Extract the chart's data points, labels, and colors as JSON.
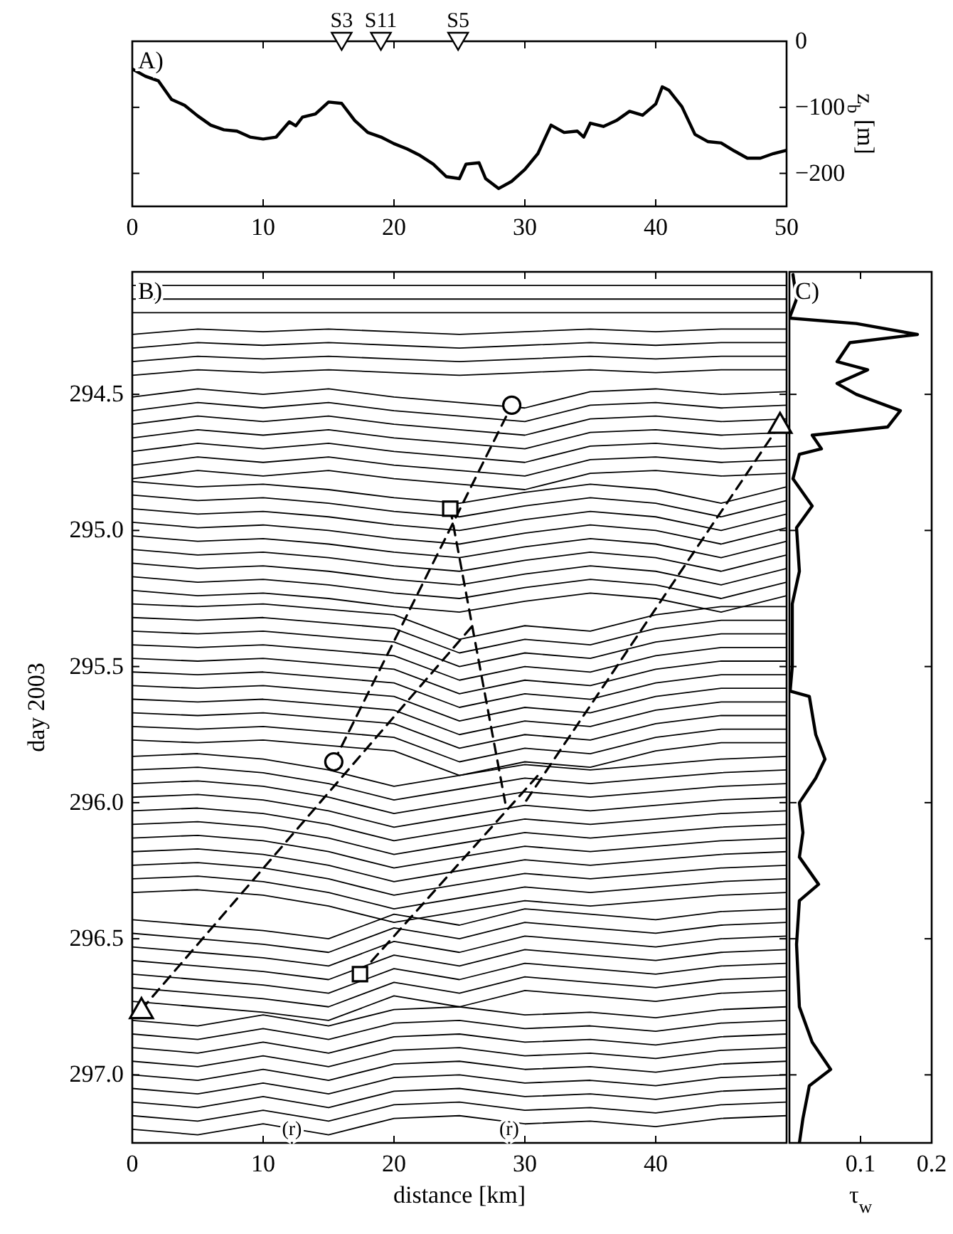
{
  "chart_data": [
    {
      "type": "line",
      "title": "A)",
      "xlim": [
        0,
        50
      ],
      "xticks": [
        0,
        10,
        20,
        30,
        40,
        50
      ],
      "y2lim": [
        -250,
        0
      ],
      "y2ticks": [
        0,
        {
          "value": -100,
          "label": "−100"
        },
        {
          "value": -200,
          "label": "−200"
        }
      ],
      "y2label": "z$_{b}$ [m]",
      "series": [
        {
          "axis": "y2",
          "color": "#000000",
          "x": [
            0,
            1,
            2,
            3,
            4,
            5,
            6,
            7,
            8,
            9,
            10,
            11,
            12,
            12.5,
            13,
            14,
            15,
            16,
            17,
            18,
            19,
            20,
            21,
            22,
            23,
            24,
            25,
            25.5,
            26.5,
            27,
            28,
            29,
            30,
            31,
            32,
            33,
            34,
            34.5,
            35,
            36,
            37,
            38,
            39,
            40,
            40.5,
            41,
            42,
            43,
            44,
            45,
            46,
            47,
            48,
            49,
            50
          ],
          "values": [
            -42,
            -53,
            -60,
            -88,
            -97,
            -113,
            -127,
            -134,
            -136,
            -145,
            -148,
            -145,
            -122,
            -128,
            -115,
            -110,
            -92,
            -94,
            -120,
            -138,
            -145,
            -155,
            -163,
            -173,
            -186,
            -205,
            -208,
            -186,
            -184,
            -208,
            -223,
            -212,
            -194,
            -170,
            -127,
            -138,
            -136,
            -145,
            -124,
            -129,
            -120,
            -106,
            -112,
            -95,
            -69,
            -74,
            -99,
            -141,
            -152,
            -154,
            -166,
            -177,
            -177,
            -170,
            -165
          ]
        },
        {
          "type": "scatter",
          "axis": "y2",
          "marker": "triangle",
          "color": "#000000",
          "x": [
            16,
            19,
            24.9
          ],
          "values": [
            0,
            0,
            0
          ],
          "value_labels": [
            "S3",
            "S11",
            "S5"
          ]
        }
      ]
    },
    {
      "type": "line",
      "title": "B)",
      "xlabel": "distance [km]",
      "ylabel": "day 2003",
      "xlim": [
        0,
        50
      ],
      "xticks": [
        0,
        10,
        20,
        30,
        40
      ],
      "ylim": [
        297.25,
        294.05
      ],
      "yticks": [
        {
          "value": 294.5,
          "label": "294.5"
        },
        {
          "value": 295,
          "label": "295.0"
        },
        {
          "value": 295.5,
          "label": "295.5"
        },
        {
          "value": 296,
          "label": "296.0"
        },
        {
          "value": 296.5,
          "label": "296.5"
        },
        {
          "value": 297,
          "label": "297.0"
        }
      ],
      "x": [
        0,
        5,
        10,
        15,
        20,
        25,
        30,
        35,
        40,
        45,
        50
      ],
      "annotations": [
        {
          "text": "(r)",
          "x": 12.2,
          "y": 297.17
        },
        {
          "text": "(r)",
          "x": 28.8,
          "y": 297.17
        }
      ],
      "series": [
        {
          "color": "#000000",
          "values": [
            294.1,
            294.1,
            294.1,
            294.1,
            294.1,
            294.1,
            294.1,
            294.1,
            294.1,
            294.1,
            294.1
          ]
        },
        {
          "color": "#000000",
          "values": [
            294.15,
            294.15,
            294.15,
            294.15,
            294.15,
            294.15,
            294.15,
            294.15,
            294.15,
            294.15,
            294.15
          ]
        },
        {
          "color": "#000000",
          "values": [
            294.2,
            294.2,
            294.2,
            294.2,
            294.2,
            294.2,
            294.2,
            294.2,
            294.2,
            294.2,
            294.2
          ]
        },
        {
          "color": "#000000",
          "values": [
            294.28,
            294.26,
            294.27,
            294.26,
            294.27,
            294.28,
            294.27,
            294.26,
            294.27,
            294.26,
            294.26
          ]
        },
        {
          "color": "#000000",
          "values": [
            294.33,
            294.31,
            294.32,
            294.31,
            294.32,
            294.33,
            294.32,
            294.31,
            294.32,
            294.31,
            294.31
          ]
        },
        {
          "color": "#000000",
          "values": [
            294.38,
            294.36,
            294.37,
            294.36,
            294.37,
            294.38,
            294.37,
            294.36,
            294.37,
            294.36,
            294.36
          ]
        },
        {
          "color": "#000000",
          "values": [
            294.43,
            294.41,
            294.42,
            294.41,
            294.42,
            294.43,
            294.42,
            294.41,
            294.42,
            294.41,
            294.41
          ]
        },
        {
          "color": "#000000",
          "values": [
            294.51,
            294.48,
            294.5,
            294.48,
            294.51,
            294.53,
            294.55,
            294.49,
            294.48,
            294.5,
            294.49
          ]
        },
        {
          "color": "#000000",
          "values": [
            294.56,
            294.53,
            294.55,
            294.53,
            294.56,
            294.58,
            294.6,
            294.54,
            294.53,
            294.55,
            294.54
          ]
        },
        {
          "color": "#000000",
          "values": [
            294.61,
            294.58,
            294.6,
            294.58,
            294.61,
            294.63,
            294.65,
            294.59,
            294.58,
            294.6,
            294.59
          ]
        },
        {
          "color": "#000000",
          "values": [
            294.66,
            294.63,
            294.65,
            294.63,
            294.66,
            294.68,
            294.7,
            294.64,
            294.63,
            294.65,
            294.64
          ]
        },
        {
          "color": "#000000",
          "values": [
            294.71,
            294.68,
            294.7,
            294.68,
            294.71,
            294.73,
            294.75,
            294.69,
            294.68,
            294.7,
            294.69
          ]
        },
        {
          "color": "#000000",
          "values": [
            294.76,
            294.73,
            294.75,
            294.73,
            294.76,
            294.78,
            294.8,
            294.74,
            294.73,
            294.75,
            294.74
          ]
        },
        {
          "color": "#000000",
          "values": [
            294.81,
            294.78,
            294.8,
            294.78,
            294.81,
            294.83,
            294.85,
            294.79,
            294.78,
            294.8,
            294.79
          ]
        },
        {
          "color": "#000000",
          "values": [
            294.82,
            294.84,
            294.83,
            294.85,
            294.88,
            294.9,
            294.86,
            294.83,
            294.85,
            294.9,
            294.84
          ]
        },
        {
          "color": "#000000",
          "values": [
            294.87,
            294.89,
            294.88,
            294.9,
            294.93,
            294.95,
            294.91,
            294.88,
            294.9,
            294.95,
            294.89
          ]
        },
        {
          "color": "#000000",
          "values": [
            294.92,
            294.94,
            294.93,
            294.95,
            294.98,
            295,
            294.96,
            294.93,
            294.95,
            295,
            294.94
          ]
        },
        {
          "color": "#000000",
          "values": [
            294.97,
            294.99,
            294.98,
            295,
            295.03,
            295.05,
            295.01,
            294.98,
            295,
            295.05,
            294.99
          ]
        },
        {
          "color": "#000000",
          "values": [
            295.02,
            295.04,
            295.03,
            295.05,
            295.08,
            295.1,
            295.06,
            295.03,
            295.05,
            295.1,
            295.04
          ]
        },
        {
          "color": "#000000",
          "values": [
            295.07,
            295.09,
            295.08,
            295.1,
            295.13,
            295.15,
            295.11,
            295.08,
            295.1,
            295.15,
            295.09
          ]
        },
        {
          "color": "#000000",
          "values": [
            295.12,
            295.14,
            295.13,
            295.15,
            295.18,
            295.2,
            295.16,
            295.13,
            295.15,
            295.2,
            295.14
          ]
        },
        {
          "color": "#000000",
          "values": [
            295.17,
            295.19,
            295.18,
            295.2,
            295.23,
            295.25,
            295.21,
            295.18,
            295.2,
            295.25,
            295.19
          ]
        },
        {
          "color": "#000000",
          "values": [
            295.22,
            295.24,
            295.23,
            295.25,
            295.28,
            295.3,
            295.26,
            295.23,
            295.25,
            295.3,
            295.24
          ]
        },
        {
          "color": "#000000",
          "values": [
            295.27,
            295.28,
            295.27,
            295.29,
            295.31,
            295.4,
            295.35,
            295.37,
            295.31,
            295.28,
            295.28
          ]
        },
        {
          "color": "#000000",
          "values": [
            295.32,
            295.33,
            295.32,
            295.34,
            295.36,
            295.45,
            295.4,
            295.42,
            295.36,
            295.33,
            295.33
          ]
        },
        {
          "color": "#000000",
          "values": [
            295.37,
            295.38,
            295.37,
            295.39,
            295.41,
            295.5,
            295.45,
            295.47,
            295.41,
            295.38,
            295.38
          ]
        },
        {
          "color": "#000000",
          "values": [
            295.42,
            295.43,
            295.42,
            295.44,
            295.46,
            295.55,
            295.5,
            295.52,
            295.46,
            295.43,
            295.43
          ]
        },
        {
          "color": "#000000",
          "values": [
            295.47,
            295.48,
            295.47,
            295.49,
            295.51,
            295.6,
            295.55,
            295.57,
            295.51,
            295.48,
            295.48
          ]
        },
        {
          "color": "#000000",
          "values": [
            295.52,
            295.53,
            295.52,
            295.54,
            295.56,
            295.65,
            295.6,
            295.62,
            295.56,
            295.53,
            295.53
          ]
        },
        {
          "color": "#000000",
          "values": [
            295.57,
            295.58,
            295.57,
            295.59,
            295.61,
            295.7,
            295.65,
            295.67,
            295.61,
            295.58,
            295.58
          ]
        },
        {
          "color": "#000000",
          "values": [
            295.62,
            295.63,
            295.62,
            295.64,
            295.66,
            295.75,
            295.7,
            295.72,
            295.66,
            295.63,
            295.63
          ]
        },
        {
          "color": "#000000",
          "values": [
            295.67,
            295.68,
            295.67,
            295.69,
            295.71,
            295.8,
            295.75,
            295.77,
            295.71,
            295.68,
            295.68
          ]
        },
        {
          "color": "#000000",
          "values": [
            295.72,
            295.73,
            295.72,
            295.74,
            295.76,
            295.85,
            295.8,
            295.82,
            295.76,
            295.73,
            295.73
          ]
        },
        {
          "color": "#000000",
          "values": [
            295.77,
            295.78,
            295.77,
            295.79,
            295.81,
            295.9,
            295.85,
            295.87,
            295.81,
            295.78,
            295.78
          ]
        },
        {
          "color": "#000000",
          "values": [
            295.83,
            295.82,
            295.84,
            295.88,
            295.94,
            295.9,
            295.86,
            295.88,
            295.86,
            295.84,
            295.83
          ]
        },
        {
          "color": "#000000",
          "values": [
            295.88,
            295.87,
            295.89,
            295.93,
            295.99,
            295.95,
            295.91,
            295.93,
            295.91,
            295.89,
            295.88
          ]
        },
        {
          "color": "#000000",
          "values": [
            295.93,
            295.92,
            295.94,
            295.98,
            296.04,
            296,
            295.96,
            295.98,
            295.96,
            295.94,
            295.93
          ]
        },
        {
          "color": "#000000",
          "values": [
            295.98,
            295.97,
            295.99,
            296.03,
            296.09,
            296.05,
            296.01,
            296.03,
            296.01,
            295.99,
            295.98
          ]
        },
        {
          "color": "#000000",
          "values": [
            296.03,
            296.02,
            296.04,
            296.08,
            296.14,
            296.1,
            296.06,
            296.08,
            296.06,
            296.04,
            296.03
          ]
        },
        {
          "color": "#000000",
          "values": [
            296.08,
            296.07,
            296.09,
            296.13,
            296.19,
            296.15,
            296.11,
            296.13,
            296.11,
            296.09,
            296.08
          ]
        },
        {
          "color": "#000000",
          "values": [
            296.13,
            296.12,
            296.14,
            296.18,
            296.24,
            296.2,
            296.16,
            296.18,
            296.16,
            296.14,
            296.13
          ]
        },
        {
          "color": "#000000",
          "values": [
            296.18,
            296.17,
            296.19,
            296.23,
            296.29,
            296.25,
            296.21,
            296.23,
            296.21,
            296.19,
            296.18
          ]
        },
        {
          "color": "#000000",
          "values": [
            296.23,
            296.22,
            296.24,
            296.28,
            296.34,
            296.3,
            296.26,
            296.28,
            296.26,
            296.24,
            296.23
          ]
        },
        {
          "color": "#000000",
          "values": [
            296.28,
            296.27,
            296.29,
            296.33,
            296.39,
            296.35,
            296.31,
            296.33,
            296.31,
            296.29,
            296.28
          ]
        },
        {
          "color": "#000000",
          "values": [
            296.33,
            296.32,
            296.34,
            296.38,
            296.44,
            296.4,
            296.36,
            296.38,
            296.36,
            296.34,
            296.33
          ]
        },
        {
          "color": "#000000",
          "values": [
            296.43,
            296.45,
            296.47,
            296.5,
            296.41,
            296.45,
            296.39,
            296.41,
            296.43,
            296.4,
            296.39
          ]
        },
        {
          "color": "#000000",
          "values": [
            296.48,
            296.5,
            296.52,
            296.55,
            296.46,
            296.5,
            296.44,
            296.46,
            296.48,
            296.45,
            296.44
          ]
        },
        {
          "color": "#000000",
          "values": [
            296.53,
            296.55,
            296.57,
            296.6,
            296.51,
            296.55,
            296.49,
            296.51,
            296.53,
            296.5,
            296.49
          ]
        },
        {
          "color": "#000000",
          "values": [
            296.58,
            296.6,
            296.62,
            296.65,
            296.56,
            296.6,
            296.54,
            296.56,
            296.58,
            296.55,
            296.54
          ]
        },
        {
          "color": "#000000",
          "values": [
            296.63,
            296.65,
            296.67,
            296.7,
            296.61,
            296.65,
            296.59,
            296.61,
            296.63,
            296.6,
            296.59
          ]
        },
        {
          "color": "#000000",
          "values": [
            296.68,
            296.7,
            296.72,
            296.75,
            296.66,
            296.7,
            296.64,
            296.66,
            296.68,
            296.65,
            296.64
          ]
        },
        {
          "color": "#000000",
          "values": [
            296.73,
            296.75,
            296.77,
            296.8,
            296.71,
            296.75,
            296.69,
            296.71,
            296.73,
            296.7,
            296.69
          ]
        },
        {
          "color": "#000000",
          "values": [
            296.8,
            296.82,
            296.78,
            296.82,
            296.76,
            296.75,
            296.78,
            296.77,
            296.79,
            296.76,
            296.75
          ]
        },
        {
          "color": "#000000",
          "values": [
            296.85,
            296.87,
            296.83,
            296.87,
            296.81,
            296.8,
            296.83,
            296.82,
            296.84,
            296.81,
            296.8
          ]
        },
        {
          "color": "#000000",
          "values": [
            296.9,
            296.92,
            296.88,
            296.92,
            296.86,
            296.85,
            296.88,
            296.87,
            296.89,
            296.86,
            296.85
          ]
        },
        {
          "color": "#000000",
          "values": [
            296.95,
            296.97,
            296.93,
            296.97,
            296.91,
            296.9,
            296.93,
            296.92,
            296.94,
            296.91,
            296.9
          ]
        },
        {
          "color": "#000000",
          "values": [
            297,
            297.02,
            296.98,
            297.02,
            296.96,
            296.95,
            296.98,
            296.97,
            296.99,
            296.96,
            296.95
          ]
        },
        {
          "color": "#000000",
          "values": [
            297.05,
            297.07,
            297.03,
            297.07,
            297.01,
            297,
            297.03,
            297.02,
            297.04,
            297.01,
            297
          ]
        },
        {
          "color": "#000000",
          "values": [
            297.1,
            297.12,
            297.08,
            297.12,
            297.06,
            297.05,
            297.08,
            297.07,
            297.09,
            297.06,
            297.05
          ]
        },
        {
          "color": "#000000",
          "values": [
            297.15,
            297.17,
            297.13,
            297.17,
            297.11,
            297.1,
            297.13,
            297.12,
            297.14,
            297.11,
            297.1
          ]
        },
        {
          "color": "#000000",
          "values": [
            297.2,
            297.22,
            297.18,
            297.22,
            297.16,
            297.15,
            297.18,
            297.17,
            297.19,
            297.16,
            297.15
          ]
        },
        {
          "type": "line",
          "line_style": "dashed",
          "color": "#000000",
          "x": [
            15.4,
            29
          ],
          "values": [
            295.85,
            294.54
          ]
        },
        {
          "type": "line",
          "line_style": "dashed",
          "color": "#000000",
          "x": [
            24.3,
            28.5
          ],
          "values": [
            294.92,
            296
          ]
        },
        {
          "type": "line",
          "line_style": "dashed",
          "color": "#000000",
          "x": [
            17.4,
            31
          ],
          "values": [
            296.63,
            295.9
          ]
        },
        {
          "type": "line",
          "line_style": "dashed",
          "color": "#000000",
          "x": [
            49.5,
            30
          ],
          "values": [
            294.61,
            296
          ]
        },
        {
          "type": "line",
          "line_style": "dashed",
          "color": "#000000",
          "x": [
            0.7,
            26
          ],
          "values": [
            296.76,
            295.35
          ]
        },
        {
          "type": "scatter",
          "marker": "circle",
          "color": "#000000",
          "x": [
            29,
            15.4
          ],
          "values": [
            294.54,
            295.85
          ]
        },
        {
          "type": "scatter",
          "marker": "square",
          "color": "#000000",
          "x": [
            24.3,
            17.4
          ],
          "values": [
            294.92,
            296.63
          ]
        },
        {
          "type": "scatter",
          "marker": "triangle",
          "color": "#000000",
          "x": [
            49.5,
            0.7
          ],
          "values": [
            294.61,
            296.76
          ]
        }
      ]
    },
    {
      "type": "line",
      "title": "C)",
      "xlabel": "τ$_{w}$",
      "orientation": "horizontal",
      "xlim": [
        0,
        0.2
      ],
      "xticks": [
        0.1,
        0.2
      ],
      "ylim": [
        297.25,
        294.05
      ],
      "yticks": [
        294.5,
        295,
        295.5,
        296,
        296.5,
        297
      ],
      "tick_labels": "x",
      "series": [
        {
          "color": "#000000",
          "x": [
            294.06,
            294.15,
            294.22,
            294.24,
            294.28,
            294.31,
            294.38,
            294.41,
            294.46,
            294.5,
            294.56,
            294.62,
            294.65,
            294.7,
            294.72,
            294.81,
            294.91,
            294.99,
            295.15,
            295.27,
            295.5,
            295.59,
            295.61,
            295.75,
            295.84,
            295.91,
            296,
            296.11,
            296.2,
            296.3,
            296.36,
            296.52,
            296.75,
            296.88,
            296.98,
            297.04,
            297.16,
            297.25
          ],
          "values": [
            0.005,
            0.01,
            0.0,
            0.094,
            0.18,
            0.085,
            0.067,
            0.11,
            0.067,
            0.094,
            0.156,
            0.138,
            0.032,
            0.045,
            0.014,
            0.005,
            0.032,
            0.01,
            0.014,
            0.004,
            0.004,
            0.001,
            0.028,
            0.037,
            0.05,
            0.037,
            0.014,
            0.019,
            0.014,
            0.041,
            0.014,
            0.01,
            0.014,
            0.032,
            0.058,
            0.028,
            0.019,
            0.014
          ]
        }
      ]
    }
  ]
}
